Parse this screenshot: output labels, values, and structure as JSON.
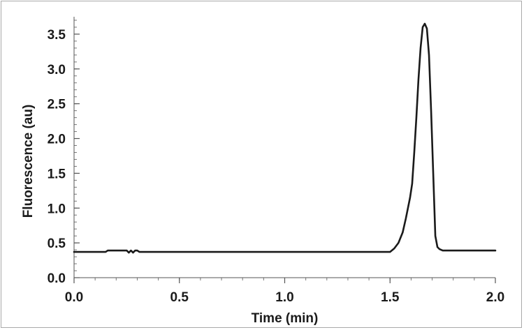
{
  "chart_data": {
    "type": "line",
    "title": "",
    "xlabel": "Time (min)",
    "ylabel": "Fluorescence (au)",
    "xlim": [
      0.0,
      2.0
    ],
    "ylim": [
      0.0,
      3.75
    ],
    "grid": false,
    "x_ticks": [
      "0.0",
      "0.5",
      "1.0",
      "1.5",
      "2.0"
    ],
    "x_tick_values": [
      0.0,
      0.5,
      1.0,
      1.5,
      2.0
    ],
    "y_ticks": [
      "0.0",
      "0.5",
      "1.0",
      "1.5",
      "2.0",
      "2.5",
      "3.0",
      "3.5"
    ],
    "y_tick_values": [
      0.0,
      0.5,
      1.0,
      1.5,
      2.0,
      2.5,
      3.0,
      3.5
    ],
    "line_color": "#1a1a1a",
    "series": [
      {
        "x": [
          0.0,
          0.15,
          0.16,
          0.25,
          0.26,
          0.27,
          0.28,
          0.29,
          0.3,
          0.31,
          0.5,
          1.0,
          1.45,
          1.5,
          1.52,
          1.54,
          1.56,
          1.575,
          1.585,
          1.595,
          1.605,
          1.615,
          1.625,
          1.635,
          1.645,
          1.655,
          1.665,
          1.675,
          1.685,
          1.695,
          1.705,
          1.715,
          1.725,
          1.735,
          1.75,
          1.8,
          1.9,
          2.0
        ],
        "y": [
          0.37,
          0.37,
          0.39,
          0.39,
          0.36,
          0.39,
          0.36,
          0.39,
          0.39,
          0.37,
          0.37,
          0.37,
          0.37,
          0.37,
          0.42,
          0.5,
          0.65,
          0.85,
          1.0,
          1.15,
          1.35,
          1.8,
          2.3,
          2.85,
          3.3,
          3.6,
          3.65,
          3.58,
          3.2,
          2.4,
          1.5,
          0.6,
          0.44,
          0.41,
          0.39,
          0.39,
          0.39,
          0.39
        ]
      }
    ]
  }
}
